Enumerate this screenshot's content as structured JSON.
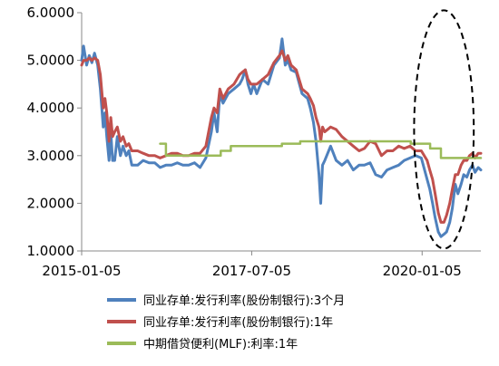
{
  "chart_data": {
    "type": "line",
    "title": "",
    "xlabel": "",
    "ylabel": "",
    "x_range": [
      "2015-01-05",
      "2020-11-15"
    ],
    "ylim": [
      1.0,
      6.0
    ],
    "y_ticks": [
      "1.0000",
      "2.0000",
      "3.0000",
      "4.0000",
      "5.0000",
      "6.0000"
    ],
    "x_ticks": [
      {
        "date": "2015-01-05",
        "label": "2015-01-05"
      },
      {
        "date": "2017-07-05",
        "label": "2017-07-05"
      },
      {
        "date": "2020-01-05",
        "label": "2020-01-05"
      }
    ],
    "grid": false,
    "legend_position": "bottom",
    "annotation": {
      "type": "dashed-ellipse",
      "center": "2020-05-01",
      "y_center": 3.55,
      "x_halfwidth_days": 160,
      "y_halfwidth": 2.5
    },
    "series": [
      {
        "name": "同业存单:发行利率(股份制银行):3个月",
        "color": "#4f81bd",
        "points": [
          [
            "2015-01-05",
            5.0
          ],
          [
            "2015-01-15",
            5.3
          ],
          [
            "2015-02-01",
            4.9
          ],
          [
            "2015-02-15",
            5.1
          ],
          [
            "2015-03-01",
            4.95
          ],
          [
            "2015-03-15",
            5.15
          ],
          [
            "2015-04-01",
            4.9
          ],
          [
            "2015-04-15",
            4.4
          ],
          [
            "2015-05-01",
            3.6
          ],
          [
            "2015-05-10",
            3.9
          ],
          [
            "2015-05-20",
            3.4
          ],
          [
            "2015-06-01",
            2.9
          ],
          [
            "2015-06-10",
            3.5
          ],
          [
            "2015-06-20",
            2.9
          ],
          [
            "2015-07-01",
            2.9
          ],
          [
            "2015-07-15",
            3.4
          ],
          [
            "2015-08-01",
            3.0
          ],
          [
            "2015-08-15",
            3.2
          ],
          [
            "2015-09-01",
            3.0
          ],
          [
            "2015-09-15",
            3.1
          ],
          [
            "2015-10-01",
            2.8
          ],
          [
            "2015-11-01",
            2.8
          ],
          [
            "2015-12-01",
            2.9
          ],
          [
            "2016-01-01",
            2.85
          ],
          [
            "2016-02-01",
            2.85
          ],
          [
            "2016-03-01",
            2.75
          ],
          [
            "2016-04-01",
            2.8
          ],
          [
            "2016-05-01",
            2.8
          ],
          [
            "2016-06-01",
            2.85
          ],
          [
            "2016-07-01",
            2.8
          ],
          [
            "2016-08-01",
            2.8
          ],
          [
            "2016-09-01",
            2.85
          ],
          [
            "2016-10-01",
            2.75
          ],
          [
            "2016-11-01",
            2.95
          ],
          [
            "2016-12-01",
            3.5
          ],
          [
            "2016-12-15",
            3.9
          ],
          [
            "2017-01-01",
            3.5
          ],
          [
            "2017-01-15",
            4.3
          ],
          [
            "2017-02-01",
            4.1
          ],
          [
            "2017-03-01",
            4.3
          ],
          [
            "2017-04-01",
            4.4
          ],
          [
            "2017-05-01",
            4.5
          ],
          [
            "2017-05-15",
            4.6
          ],
          [
            "2017-06-01",
            4.8
          ],
          [
            "2017-06-15",
            4.5
          ],
          [
            "2017-07-01",
            4.3
          ],
          [
            "2017-07-15",
            4.5
          ],
          [
            "2017-08-01",
            4.3
          ],
          [
            "2017-09-01",
            4.6
          ],
          [
            "2017-10-01",
            4.5
          ],
          [
            "2017-11-01",
            4.9
          ],
          [
            "2017-12-01",
            5.05
          ],
          [
            "2017-12-15",
            5.45
          ],
          [
            "2018-01-01",
            4.9
          ],
          [
            "2018-01-15",
            5.0
          ],
          [
            "2018-02-01",
            4.8
          ],
          [
            "2018-03-01",
            4.75
          ],
          [
            "2018-04-01",
            4.3
          ],
          [
            "2018-05-01",
            4.2
          ],
          [
            "2018-05-15",
            4.0
          ],
          [
            "2018-06-01",
            3.7
          ],
          [
            "2018-06-15",
            3.3
          ],
          [
            "2018-07-01",
            2.6
          ],
          [
            "2018-07-10",
            2.0
          ],
          [
            "2018-07-20",
            2.8
          ],
          [
            "2018-08-01",
            2.9
          ],
          [
            "2018-09-01",
            3.2
          ],
          [
            "2018-10-01",
            2.9
          ],
          [
            "2018-11-01",
            2.8
          ],
          [
            "2018-12-01",
            2.9
          ],
          [
            "2019-01-01",
            2.7
          ],
          [
            "2019-02-01",
            2.8
          ],
          [
            "2019-03-01",
            2.8
          ],
          [
            "2019-04-01",
            2.85
          ],
          [
            "2019-05-01",
            2.6
          ],
          [
            "2019-06-01",
            2.55
          ],
          [
            "2019-07-01",
            2.7
          ],
          [
            "2019-08-01",
            2.75
          ],
          [
            "2019-09-01",
            2.8
          ],
          [
            "2019-10-01",
            2.9
          ],
          [
            "2019-11-01",
            2.95
          ],
          [
            "2019-12-01",
            3.0
          ],
          [
            "2020-01-01",
            2.95
          ],
          [
            "2020-02-01",
            2.5
          ],
          [
            "2020-02-15",
            2.3
          ],
          [
            "2020-03-01",
            2.0
          ],
          [
            "2020-03-15",
            1.7
          ],
          [
            "2020-04-01",
            1.4
          ],
          [
            "2020-04-15",
            1.3
          ],
          [
            "2020-05-01",
            1.35
          ],
          [
            "2020-05-15",
            1.4
          ],
          [
            "2020-06-01",
            1.6
          ],
          [
            "2020-06-15",
            1.9
          ],
          [
            "2020-07-01",
            2.4
          ],
          [
            "2020-07-15",
            2.2
          ],
          [
            "2020-08-01",
            2.4
          ],
          [
            "2020-08-15",
            2.6
          ],
          [
            "2020-09-01",
            2.55
          ],
          [
            "2020-09-15",
            2.7
          ],
          [
            "2020-10-01",
            2.8
          ],
          [
            "2020-10-15",
            2.65
          ],
          [
            "2020-11-01",
            2.75
          ],
          [
            "2020-11-15",
            2.7
          ]
        ]
      },
      {
        "name": "同业存单:发行利率(股份制银行):1年",
        "color": "#c0504d",
        "points": [
          [
            "2015-01-05",
            4.9
          ],
          [
            "2015-01-15",
            5.0
          ],
          [
            "2015-02-01",
            5.0
          ],
          [
            "2015-02-15",
            5.05
          ],
          [
            "2015-03-01",
            5.0
          ],
          [
            "2015-03-15",
            5.05
          ],
          [
            "2015-04-01",
            5.0
          ],
          [
            "2015-04-15",
            4.7
          ],
          [
            "2015-05-01",
            4.0
          ],
          [
            "2015-05-10",
            4.2
          ],
          [
            "2015-05-20",
            3.9
          ],
          [
            "2015-06-01",
            3.3
          ],
          [
            "2015-06-10",
            3.8
          ],
          [
            "2015-06-20",
            3.4
          ],
          [
            "2015-07-01",
            3.5
          ],
          [
            "2015-07-15",
            3.6
          ],
          [
            "2015-08-01",
            3.3
          ],
          [
            "2015-08-15",
            3.4
          ],
          [
            "2015-09-01",
            3.2
          ],
          [
            "2015-09-15",
            3.25
          ],
          [
            "2015-10-01",
            3.1
          ],
          [
            "2015-11-01",
            3.1
          ],
          [
            "2015-12-01",
            3.05
          ],
          [
            "2016-01-01",
            3.0
          ],
          [
            "2016-02-01",
            3.0
          ],
          [
            "2016-03-01",
            2.95
          ],
          [
            "2016-04-01",
            3.0
          ],
          [
            "2016-05-01",
            3.05
          ],
          [
            "2016-06-01",
            3.05
          ],
          [
            "2016-07-01",
            3.0
          ],
          [
            "2016-08-01",
            3.0
          ],
          [
            "2016-09-01",
            3.05
          ],
          [
            "2016-10-01",
            3.05
          ],
          [
            "2016-11-01",
            3.2
          ],
          [
            "2016-12-01",
            3.8
          ],
          [
            "2016-12-15",
            4.0
          ],
          [
            "2017-01-01",
            3.9
          ],
          [
            "2017-01-15",
            4.4
          ],
          [
            "2017-02-01",
            4.2
          ],
          [
            "2017-03-01",
            4.4
          ],
          [
            "2017-04-01",
            4.5
          ],
          [
            "2017-05-01",
            4.7
          ],
          [
            "2017-05-15",
            4.75
          ],
          [
            "2017-06-01",
            4.8
          ],
          [
            "2017-06-15",
            4.6
          ],
          [
            "2017-07-01",
            4.5
          ],
          [
            "2017-07-15",
            4.5
          ],
          [
            "2017-08-01",
            4.5
          ],
          [
            "2017-09-01",
            4.6
          ],
          [
            "2017-10-01",
            4.7
          ],
          [
            "2017-11-01",
            4.95
          ],
          [
            "2017-12-01",
            5.1
          ],
          [
            "2017-12-15",
            5.2
          ],
          [
            "2018-01-01",
            5.0
          ],
          [
            "2018-01-15",
            5.1
          ],
          [
            "2018-02-01",
            4.9
          ],
          [
            "2018-03-01",
            4.8
          ],
          [
            "2018-04-01",
            4.4
          ],
          [
            "2018-05-01",
            4.3
          ],
          [
            "2018-05-15",
            4.2
          ],
          [
            "2018-06-01",
            4.05
          ],
          [
            "2018-06-15",
            3.8
          ],
          [
            "2018-07-01",
            3.6
          ],
          [
            "2018-07-10",
            3.3
          ],
          [
            "2018-07-20",
            3.6
          ],
          [
            "2018-08-01",
            3.5
          ],
          [
            "2018-09-01",
            3.6
          ],
          [
            "2018-10-01",
            3.55
          ],
          [
            "2018-11-01",
            3.4
          ],
          [
            "2018-12-01",
            3.3
          ],
          [
            "2019-01-01",
            3.2
          ],
          [
            "2019-02-01",
            3.1
          ],
          [
            "2019-03-01",
            3.15
          ],
          [
            "2019-04-01",
            3.3
          ],
          [
            "2019-05-01",
            3.25
          ],
          [
            "2019-06-01",
            3.0
          ],
          [
            "2019-07-01",
            3.1
          ],
          [
            "2019-08-01",
            3.1
          ],
          [
            "2019-09-01",
            3.2
          ],
          [
            "2019-10-01",
            3.15
          ],
          [
            "2019-11-01",
            3.2
          ],
          [
            "2019-12-01",
            3.1
          ],
          [
            "2020-01-01",
            3.1
          ],
          [
            "2020-02-01",
            2.9
          ],
          [
            "2020-02-15",
            2.7
          ],
          [
            "2020-03-01",
            2.5
          ],
          [
            "2020-03-15",
            2.2
          ],
          [
            "2020-04-01",
            1.8
          ],
          [
            "2020-04-15",
            1.6
          ],
          [
            "2020-05-01",
            1.6
          ],
          [
            "2020-05-15",
            1.75
          ],
          [
            "2020-06-01",
            2.0
          ],
          [
            "2020-06-15",
            2.3
          ],
          [
            "2020-07-01",
            2.6
          ],
          [
            "2020-07-15",
            2.6
          ],
          [
            "2020-08-01",
            2.8
          ],
          [
            "2020-08-15",
            2.9
          ],
          [
            "2020-09-01",
            2.9
          ],
          [
            "2020-09-15",
            3.0
          ],
          [
            "2020-10-01",
            3.05
          ],
          [
            "2020-10-15",
            2.95
          ],
          [
            "2020-11-01",
            3.05
          ],
          [
            "2020-11-15",
            3.05
          ]
        ]
      },
      {
        "name": "中期借贷便利(MLF):利率:1年",
        "color": "#9bbb59",
        "points": [
          [
            "2016-03-01",
            3.25
          ],
          [
            "2016-04-01",
            3.25
          ],
          [
            "2016-04-01",
            3.0
          ],
          [
            "2017-01-20",
            3.0
          ],
          [
            "2017-01-20",
            3.1
          ],
          [
            "2017-03-15",
            3.1
          ],
          [
            "2017-03-15",
            3.2
          ],
          [
            "2017-12-14",
            3.2
          ],
          [
            "2017-12-14",
            3.25
          ],
          [
            "2018-03-22",
            3.25
          ],
          [
            "2018-03-22",
            3.3
          ],
          [
            "2019-11-05",
            3.3
          ],
          [
            "2019-11-05",
            3.25
          ],
          [
            "2020-02-17",
            3.25
          ],
          [
            "2020-02-17",
            3.15
          ],
          [
            "2020-04-15",
            3.15
          ],
          [
            "2020-04-15",
            2.95
          ],
          [
            "2020-11-15",
            2.95
          ]
        ]
      }
    ]
  }
}
